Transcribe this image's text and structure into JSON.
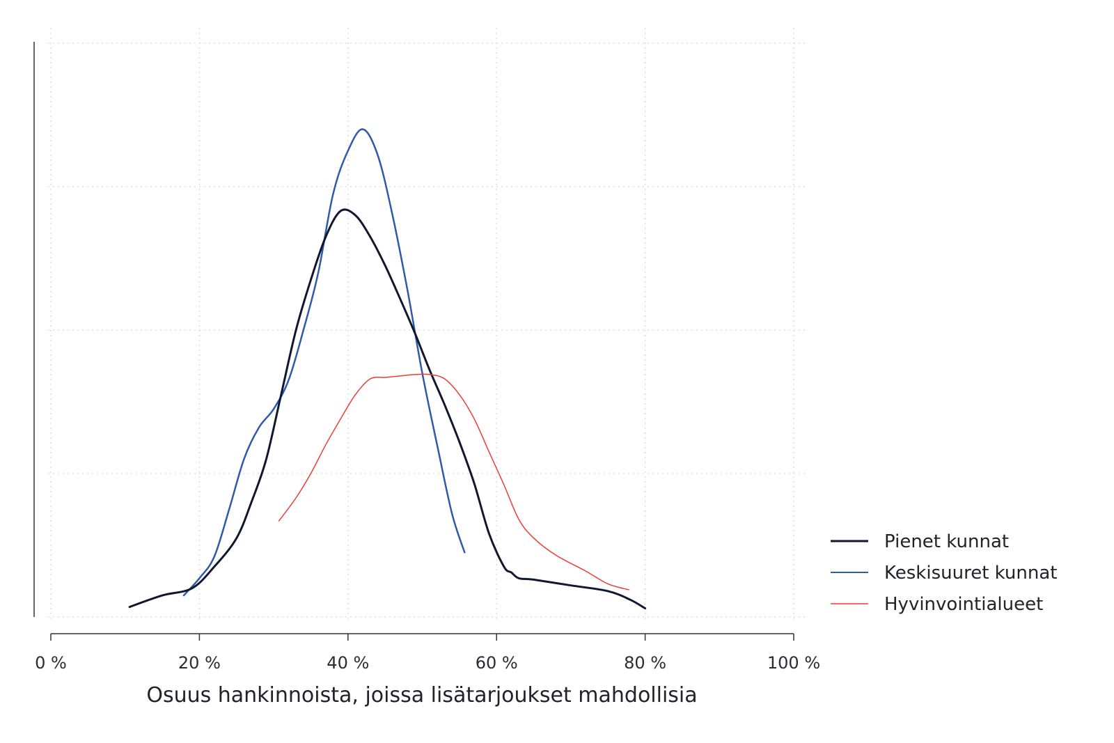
{
  "chart_data": {
    "type": "line",
    "title": "",
    "xlabel": "Osuus hankinnoista, joissa lisätarjoukset mahdollisia",
    "ylabel": "",
    "xlim": [
      0,
      100
    ],
    "ylim": [
      0,
      4
    ],
    "x_ticks": [
      0,
      20,
      40,
      60,
      80,
      100
    ],
    "x_tick_labels": [
      "0 %",
      "20 %",
      "40 %",
      "60 %",
      "80 %",
      "100 %"
    ],
    "y_gridlines": [
      0,
      1,
      2,
      3,
      4
    ],
    "grid": true,
    "legend_position": "right",
    "series": [
      {
        "name": "Pienet kunnat",
        "color": "#101830",
        "width": 3,
        "points": [
          [
            10.6,
            0.07
          ],
          [
            15,
            0.15
          ],
          [
            19,
            0.2
          ],
          [
            22,
            0.35
          ],
          [
            25,
            0.55
          ],
          [
            27,
            0.8
          ],
          [
            29,
            1.1
          ],
          [
            31,
            1.55
          ],
          [
            33,
            2.0
          ],
          [
            35,
            2.35
          ],
          [
            37,
            2.65
          ],
          [
            39,
            2.83
          ],
          [
            41,
            2.8
          ],
          [
            43,
            2.65
          ],
          [
            45,
            2.45
          ],
          [
            47,
            2.22
          ],
          [
            49,
            1.98
          ],
          [
            51,
            1.72
          ],
          [
            53,
            1.48
          ],
          [
            55,
            1.22
          ],
          [
            57,
            0.93
          ],
          [
            59,
            0.58
          ],
          [
            61,
            0.35
          ],
          [
            62,
            0.31
          ],
          [
            63,
            0.27
          ],
          [
            65,
            0.26
          ],
          [
            70,
            0.22
          ],
          [
            75,
            0.18
          ],
          [
            78,
            0.12
          ],
          [
            80,
            0.06
          ]
        ]
      },
      {
        "name": "Keskisuuret kunnat",
        "color": "#2f5aa8",
        "width": 2.5,
        "points": [
          [
            17.9,
            0.15
          ],
          [
            20,
            0.27
          ],
          [
            22,
            0.42
          ],
          [
            24,
            0.75
          ],
          [
            26,
            1.1
          ],
          [
            28,
            1.32
          ],
          [
            30,
            1.45
          ],
          [
            32,
            1.65
          ],
          [
            34,
            2.0
          ],
          [
            36,
            2.4
          ],
          [
            38,
            2.95
          ],
          [
            40,
            3.25
          ],
          [
            42,
            3.4
          ],
          [
            44,
            3.22
          ],
          [
            46,
            2.8
          ],
          [
            48,
            2.28
          ],
          [
            50,
            1.7
          ],
          [
            52,
            1.2
          ],
          [
            54,
            0.72
          ],
          [
            55.7,
            0.45
          ]
        ]
      },
      {
        "name": "Hyvinvointialueet",
        "color": "#ef3b35",
        "width": 1.5,
        "points": [
          [
            30.7,
            0.67
          ],
          [
            33,
            0.83
          ],
          [
            35,
            1.0
          ],
          [
            37,
            1.2
          ],
          [
            39,
            1.38
          ],
          [
            41,
            1.55
          ],
          [
            43,
            1.66
          ],
          [
            45,
            1.67
          ],
          [
            47,
            1.68
          ],
          [
            49,
            1.69
          ],
          [
            51,
            1.69
          ],
          [
            53,
            1.66
          ],
          [
            55,
            1.55
          ],
          [
            57,
            1.38
          ],
          [
            59,
            1.15
          ],
          [
            61,
            0.92
          ],
          [
            63,
            0.68
          ],
          [
            65,
            0.55
          ],
          [
            68,
            0.43
          ],
          [
            72,
            0.32
          ],
          [
            75,
            0.23
          ],
          [
            77.8,
            0.19
          ]
        ]
      }
    ]
  }
}
